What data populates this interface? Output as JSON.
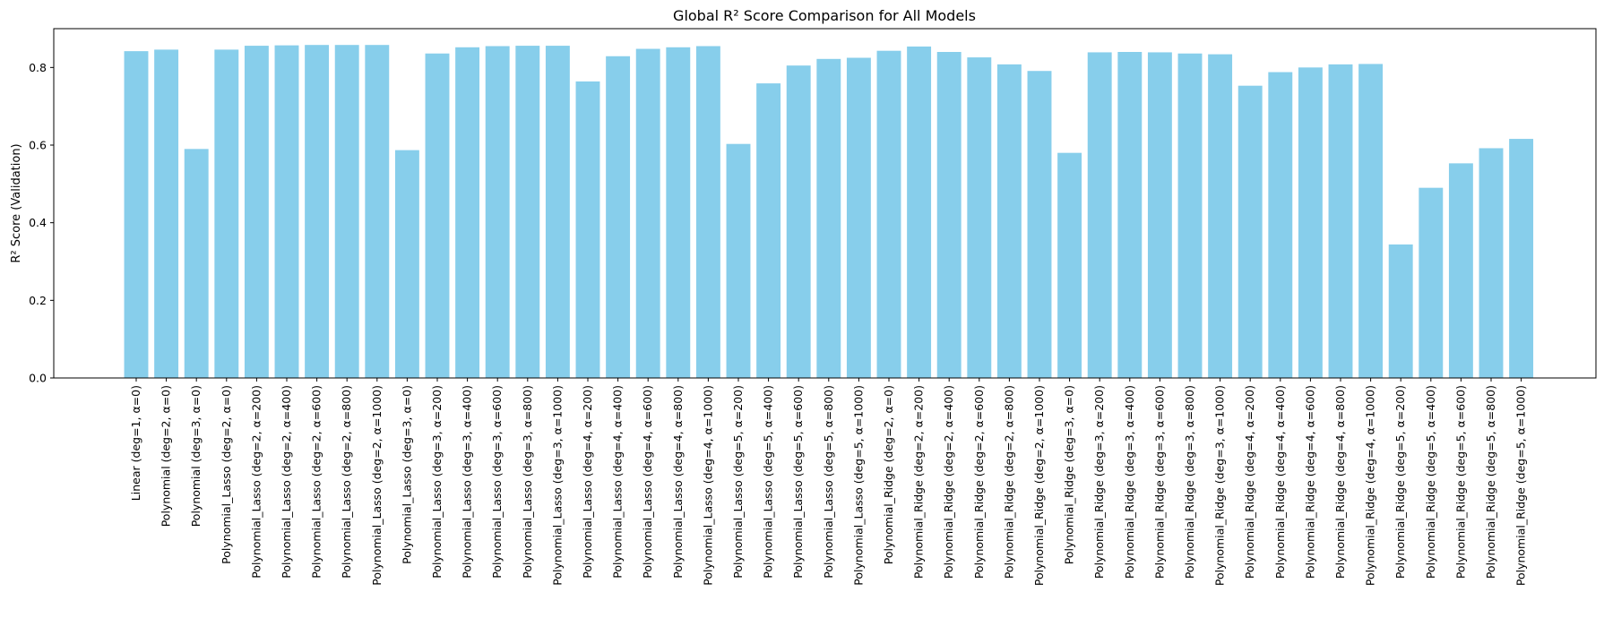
{
  "chart_data": {
    "type": "bar",
    "title": "Global R² Score Comparison for All Models",
    "xlabel": "",
    "ylabel": "R² Score (Validation)",
    "ylim": [
      0,
      0.9
    ],
    "yticks": [
      0.0,
      0.2,
      0.4,
      0.6,
      0.8
    ],
    "ytick_labels": [
      "0.0",
      "0.2",
      "0.4",
      "0.6",
      "0.8"
    ],
    "bar_color": "#87CEEB",
    "grid": false,
    "categories": [
      "Linear (deg=1, α=0)",
      "Polynomial (deg=2, α=0)",
      "Polynomial (deg=3, α=0)",
      "Polynomial_Lasso (deg=2, α=0)",
      "Polynomial_Lasso (deg=2, α=200)",
      "Polynomial_Lasso (deg=2, α=400)",
      "Polynomial_Lasso (deg=2, α=600)",
      "Polynomial_Lasso (deg=2, α=800)",
      "Polynomial_Lasso (deg=2, α=1000)",
      "Polynomial_Lasso (deg=3, α=0)",
      "Polynomial_Lasso (deg=3, α=200)",
      "Polynomial_Lasso (deg=3, α=400)",
      "Polynomial_Lasso (deg=3, α=600)",
      "Polynomial_Lasso (deg=3, α=800)",
      "Polynomial_Lasso (deg=3, α=1000)",
      "Polynomial_Lasso (deg=4, α=200)",
      "Polynomial_Lasso (deg=4, α=400)",
      "Polynomial_Lasso (deg=4, α=600)",
      "Polynomial_Lasso (deg=4, α=800)",
      "Polynomial_Lasso (deg=4, α=1000)",
      "Polynomial_Lasso (deg=5, α=200)",
      "Polynomial_Lasso (deg=5, α=400)",
      "Polynomial_Lasso (deg=5, α=600)",
      "Polynomial_Lasso (deg=5, α=800)",
      "Polynomial_Lasso (deg=5, α=1000)",
      "Polynomial_Ridge (deg=2, α=0)",
      "Polynomial_Ridge (deg=2, α=200)",
      "Polynomial_Ridge (deg=2, α=400)",
      "Polynomial_Ridge (deg=2, α=600)",
      "Polynomial_Ridge (deg=2, α=800)",
      "Polynomial_Ridge (deg=2, α=1000)",
      "Polynomial_Ridge (deg=3, α=0)",
      "Polynomial_Ridge (deg=3, α=200)",
      "Polynomial_Ridge (deg=3, α=400)",
      "Polynomial_Ridge (deg=3, α=600)",
      "Polynomial_Ridge (deg=3, α=800)",
      "Polynomial_Ridge (deg=3, α=1000)",
      "Polynomial_Ridge (deg=4, α=200)",
      "Polynomial_Ridge (deg=4, α=400)",
      "Polynomial_Ridge (deg=4, α=600)",
      "Polynomial_Ridge (deg=4, α=800)",
      "Polynomial_Ridge (deg=4, α=1000)",
      "Polynomial_Ridge (deg=5, α=200)",
      "Polynomial_Ridge (deg=5, α=400)",
      "Polynomial_Ridge (deg=5, α=600)",
      "Polynomial_Ridge (deg=5, α=800)",
      "Polynomial_Ridge (deg=5, α=1000)"
    ],
    "values": [
      0.842,
      0.846,
      0.59,
      0.846,
      0.856,
      0.857,
      0.858,
      0.858,
      0.858,
      0.587,
      0.836,
      0.852,
      0.855,
      0.856,
      0.856,
      0.764,
      0.829,
      0.848,
      0.852,
      0.855,
      0.603,
      0.759,
      0.805,
      0.822,
      0.825,
      0.843,
      0.854,
      0.84,
      0.826,
      0.808,
      0.791,
      0.58,
      0.839,
      0.84,
      0.839,
      0.836,
      0.834,
      0.753,
      0.788,
      0.8,
      0.808,
      0.809,
      0.344,
      0.49,
      0.553,
      0.592,
      0.616
    ]
  }
}
